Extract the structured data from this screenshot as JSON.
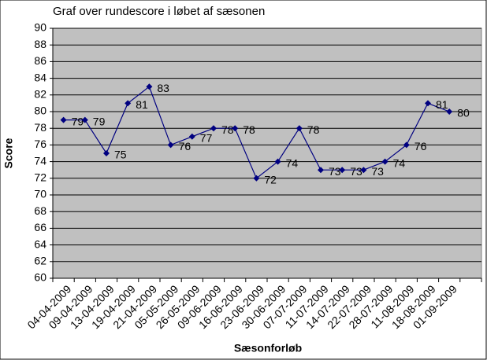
{
  "chart_data": {
    "type": "line",
    "title": "Graf over rundescore i løbet af sæsonen",
    "x_label": "Sæsonforløb",
    "y_label": "Score",
    "categories": [
      "04-04-2009",
      "09-04-2009",
      "13-04-2009",
      "19-04-2009",
      "21-04-2009",
      "05-05-2009",
      "26-05-2009",
      "09-06-2009",
      "16-06-2009",
      "23-06-2009",
      "30-06-2009",
      "07-07-2009",
      "11-07-2009",
      "14-07-2009",
      "22-07-2009",
      "28-07-2009",
      "11-08-2009",
      "18-08-2009",
      "01-09-2009",
      null
    ],
    "values": [
      79,
      79,
      75,
      81,
      83,
      76,
      77,
      78,
      78,
      72,
      74,
      78,
      73,
      73,
      73,
      74,
      76,
      81,
      80,
      null
    ],
    "color": "#000080",
    "ylim": [
      60,
      90
    ],
    "yticks": [
      60,
      62,
      64,
      66,
      68,
      70,
      72,
      74,
      76,
      78,
      80,
      82,
      84,
      86,
      88,
      90
    ],
    "grid": true,
    "background": "#c0c0c0"
  }
}
